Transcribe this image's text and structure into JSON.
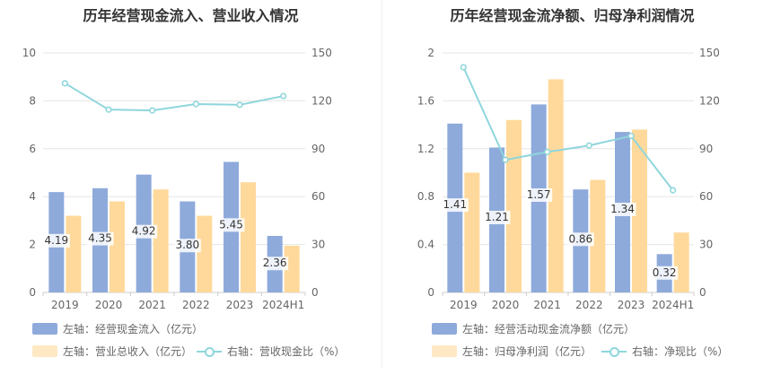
{
  "chart_data": [
    {
      "type": "bar",
      "title": "历年经营现金流入、营业收入情况",
      "categories": [
        "2019",
        "2020",
        "2021",
        "2022",
        "2023",
        "2024H1"
      ],
      "left_axis": {
        "ylim": [
          0,
          10
        ],
        "ticks": [
          "0",
          "2",
          "4",
          "6",
          "8",
          "10"
        ]
      },
      "right_axis": {
        "ylim": [
          0,
          150
        ],
        "ticks": [
          "0",
          "30",
          "60",
          "90",
          "120",
          "150"
        ]
      },
      "series": [
        {
          "name": "左轴：经营现金流入（亿元）",
          "kind": "bar",
          "axis": "left",
          "color": "#8eaadb",
          "values": [
            4.19,
            4.35,
            4.92,
            3.8,
            5.45,
            2.36
          ],
          "labels": [
            "4.19",
            "4.35",
            "4.92",
            "3.80",
            "5.45",
            "2.36"
          ]
        },
        {
          "name": "左轴：营业总收入（亿元）",
          "kind": "bar",
          "axis": "left",
          "color": "#ffd99b",
          "values": [
            3.2,
            3.8,
            4.3,
            3.2,
            4.6,
            1.95
          ]
        },
        {
          "name": "右轴：营收现金比（%）",
          "kind": "line",
          "axis": "right",
          "color": "#8ed6dc",
          "values": [
            131,
            114.5,
            114,
            118,
            117.5,
            123
          ]
        }
      ],
      "grid": true
    },
    {
      "type": "bar",
      "title": "历年经营现金流净额、归母净利润情况",
      "categories": [
        "2019",
        "2020",
        "2021",
        "2022",
        "2023",
        "2024H1"
      ],
      "left_axis": {
        "ylim": [
          0,
          2
        ],
        "ticks": [
          "0",
          "0.4",
          "0.8",
          "1.2",
          "1.6",
          "2"
        ]
      },
      "right_axis": {
        "ylim": [
          0,
          150
        ],
        "ticks": [
          "0",
          "30",
          "60",
          "90",
          "120",
          "150"
        ]
      },
      "series": [
        {
          "name": "左轴：经营活动现金流净额（亿元）",
          "kind": "bar",
          "axis": "left",
          "color": "#8eaadb",
          "values": [
            1.41,
            1.21,
            1.57,
            0.86,
            1.34,
            0.32
          ],
          "labels": [
            "1.41",
            "1.21",
            "1.57",
            "0.86",
            "1.34",
            "0.32"
          ]
        },
        {
          "name": "左轴：归母净利润（亿元）",
          "kind": "bar",
          "axis": "left",
          "color": "#ffd99b",
          "values": [
            1.0,
            1.44,
            1.78,
            0.94,
            1.36,
            0.5
          ]
        },
        {
          "name": "右轴：净现比（%）",
          "kind": "line",
          "axis": "right",
          "color": "#8ed6dc",
          "values": [
            141,
            83,
            88,
            92,
            98,
            64
          ]
        }
      ],
      "grid": true
    }
  ]
}
